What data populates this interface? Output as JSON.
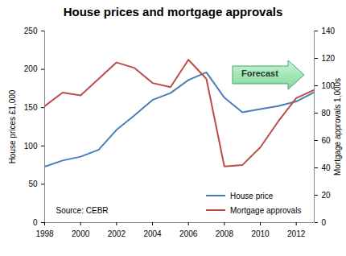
{
  "chart_data": {
    "type": "line",
    "title": "House prices and mortgage approvals",
    "x": [
      1998,
      1999,
      2000,
      2001,
      2002,
      2003,
      2004,
      2005,
      2006,
      2007,
      2008,
      2009,
      2010,
      2011,
      2012,
      2013
    ],
    "series": [
      {
        "name": "House price",
        "color": "#4a7ebb",
        "values": [
          73,
          81,
          86,
          95,
          121,
          140,
          160,
          169,
          186,
          196,
          163,
          144,
          148,
          152,
          158,
          170
        ]
      },
      {
        "name": "Mortgage approvals",
        "color": "#be4b48",
        "axis": "y2",
        "values": [
          85,
          95,
          93,
          105,
          117,
          113,
          102,
          99,
          119,
          105,
          41,
          42,
          55,
          74,
          91,
          97
        ]
      }
    ],
    "xlim": [
      1998,
      2013
    ],
    "xticks": [
      1998,
      2000,
      2002,
      2004,
      2006,
      2008,
      2010,
      2012
    ],
    "ylabel": "House prices £1,000",
    "ylim": [
      0,
      250
    ],
    "yticks": [
      0,
      50,
      100,
      150,
      200,
      250
    ],
    "y2label": "Mortgage approvals 1,000s",
    "y2lim": [
      0,
      140
    ],
    "y2ticks": [
      0,
      20,
      40,
      60,
      80,
      100,
      120,
      140
    ],
    "legend": "lower right",
    "annotations": [
      "Forecast",
      "Source: CEBR"
    ]
  }
}
